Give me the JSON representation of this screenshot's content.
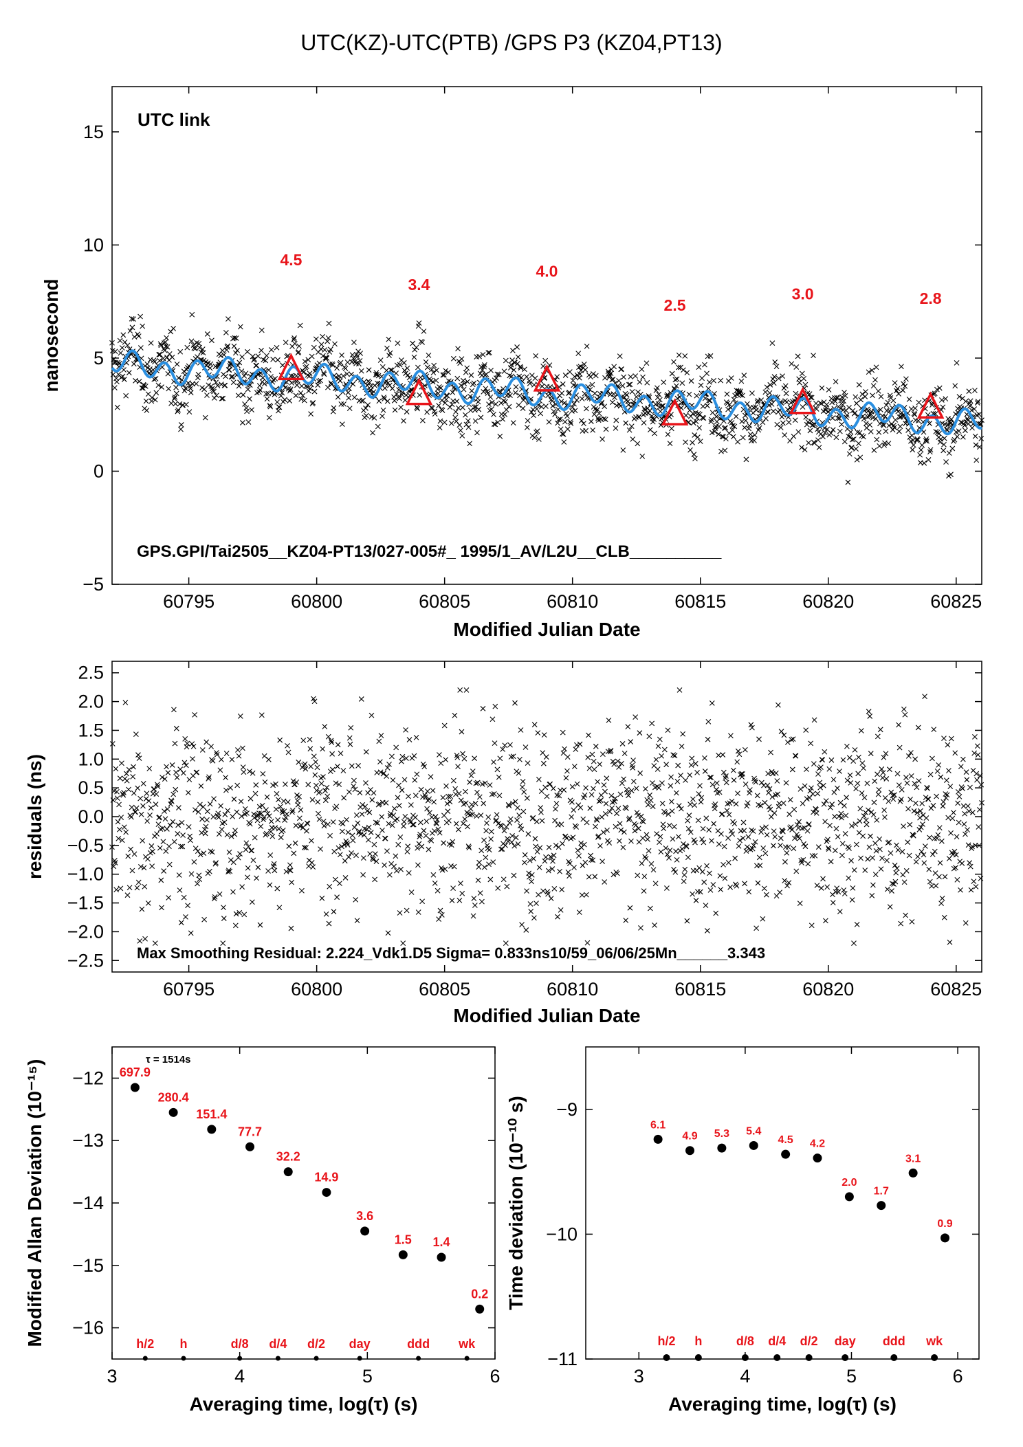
{
  "title": "UTC(KZ)-UTC(PTB)  /GPS  P3  (KZ04,PT13)",
  "colors": {
    "smooth": "#2b8fe0",
    "marker": "#e8141a",
    "legend": "#6a8c24",
    "points": "#000000"
  },
  "chart_data": [
    {
      "type": "scatter",
      "name": "main",
      "ylabel": "nanosecond",
      "xlabel": "Modified Julian Date",
      "xlim": [
        60792.0,
        60826.0
      ],
      "ylim": [
        -5,
        17
      ],
      "xticks": [
        60795,
        60800,
        60805,
        60810,
        60815,
        60820,
        60825
      ],
      "yticks": [
        -5,
        0,
        5,
        10,
        15
      ],
      "legend": "UTC link",
      "footer": "GPS.GPI/Tai2505__KZ04-PT13/027-005#_  1995/1_AV/L2U__CLB__________",
      "points_per_day": 48,
      "trend": {
        "start": 4.7,
        "end": 2.1,
        "scatter_ns": 0.83
      },
      "triangles": [
        {
          "x": 60799,
          "y": 4.5,
          "label": "4.5"
        },
        {
          "x": 60804,
          "y": 3.4,
          "label": "3.4"
        },
        {
          "x": 60809,
          "y": 4.0,
          "label": "4.0"
        },
        {
          "x": 60814,
          "y": 2.5,
          "label": "2.5"
        },
        {
          "x": 60819,
          "y": 3.0,
          "label": "3.0"
        },
        {
          "x": 60824,
          "y": 2.8,
          "label": "2.8"
        }
      ]
    },
    {
      "type": "scatter",
      "name": "residuals",
      "ylabel": "residuals (ns)",
      "xlabel": "Modified Julian Date",
      "xlim": [
        60792.0,
        60826.0
      ],
      "ylim": [
        -2.7,
        2.7
      ],
      "xticks": [
        60795,
        60800,
        60805,
        60810,
        60815,
        60820,
        60825
      ],
      "yticks": [
        -2.5,
        -2.0,
        -1.5,
        -1.0,
        -0.5,
        0.0,
        0.5,
        1.0,
        1.5,
        2.0,
        2.5
      ],
      "ytick_labels": [
        "−2.5",
        "−2.0",
        "−1.5",
        "−1.0",
        "−0.5",
        "0.0",
        "0.5",
        "1.0",
        "1.5",
        "2.0",
        "2.5"
      ],
      "footer": "Max Smoothing Residual: 2.224_Vdk1.D5  Sigma= 0.833ns10/59_06/06/25Mn______3.343",
      "sigma_ns": 0.83
    },
    {
      "type": "scatter",
      "name": "mdev",
      "ylabel": "Modified Allan Deviation (10⁻¹⁵)",
      "xlabel": "Averaging time, log(τ) (s)",
      "xlim": [
        3,
        6
      ],
      "ylim": [
        -16.5,
        -11.5
      ],
      "xticks": [
        3,
        4,
        5,
        6
      ],
      "yticks": [
        -16,
        -15,
        -14,
        -13,
        -12
      ],
      "tau_note": "τ = 1514s",
      "x": [
        3.18,
        3.48,
        3.78,
        4.08,
        4.38,
        4.68,
        4.98,
        5.28,
        5.58,
        5.88
      ],
      "y": [
        -12.15,
        -12.55,
        -12.82,
        -13.1,
        -13.5,
        -13.83,
        -14.45,
        -14.83,
        -14.87,
        -15.7
      ],
      "labels": [
        "697.9",
        "280.4",
        "151.4",
        "77.7",
        "32.2",
        "14.9",
        "3.6",
        "1.5",
        "1.4",
        "0.2"
      ],
      "markers": [
        {
          "x": 3.26,
          "label": "h/2"
        },
        {
          "x": 3.56,
          "label": "h"
        },
        {
          "x": 4.0,
          "label": "d/8"
        },
        {
          "x": 4.3,
          "label": "d/4"
        },
        {
          "x": 4.6,
          "label": "d/2"
        },
        {
          "x": 4.94,
          "label": "day"
        },
        {
          "x": 5.4,
          "label": "ddd"
        },
        {
          "x": 5.78,
          "label": "wk"
        }
      ]
    },
    {
      "type": "scatter",
      "name": "tdev",
      "ylabel": "Time deviation (10⁻¹⁰ s)",
      "xlabel": "Averaging time, log(τ) (s)",
      "xlim": [
        2.5,
        6.2
      ],
      "ylim": [
        -11,
        -8.5
      ],
      "xticks": [
        3,
        4,
        5,
        6
      ],
      "yticks": [
        -11,
        -10,
        -9
      ],
      "ytick_labels": [
        "−11",
        "−10",
        "−9"
      ],
      "x": [
        3.18,
        3.48,
        3.78,
        4.08,
        4.38,
        4.68,
        4.98,
        5.28,
        5.58,
        5.88
      ],
      "y": [
        -9.24,
        -9.33,
        -9.31,
        -9.29,
        -9.36,
        -9.39,
        -9.7,
        -9.77,
        -9.51,
        -10.03
      ],
      "labels": [
        "6.1",
        "4.9",
        "5.3",
        "5.4",
        "4.5",
        "4.2",
        "2.0",
        "1.7",
        "3.1",
        "0.9"
      ],
      "markers": [
        {
          "x": 3.26,
          "label": "h/2"
        },
        {
          "x": 3.56,
          "label": "h"
        },
        {
          "x": 4.0,
          "label": "d/8"
        },
        {
          "x": 4.3,
          "label": "d/4"
        },
        {
          "x": 4.6,
          "label": "d/2"
        },
        {
          "x": 4.94,
          "label": "day"
        },
        {
          "x": 5.4,
          "label": "ddd"
        },
        {
          "x": 5.78,
          "label": "wk"
        }
      ]
    }
  ]
}
